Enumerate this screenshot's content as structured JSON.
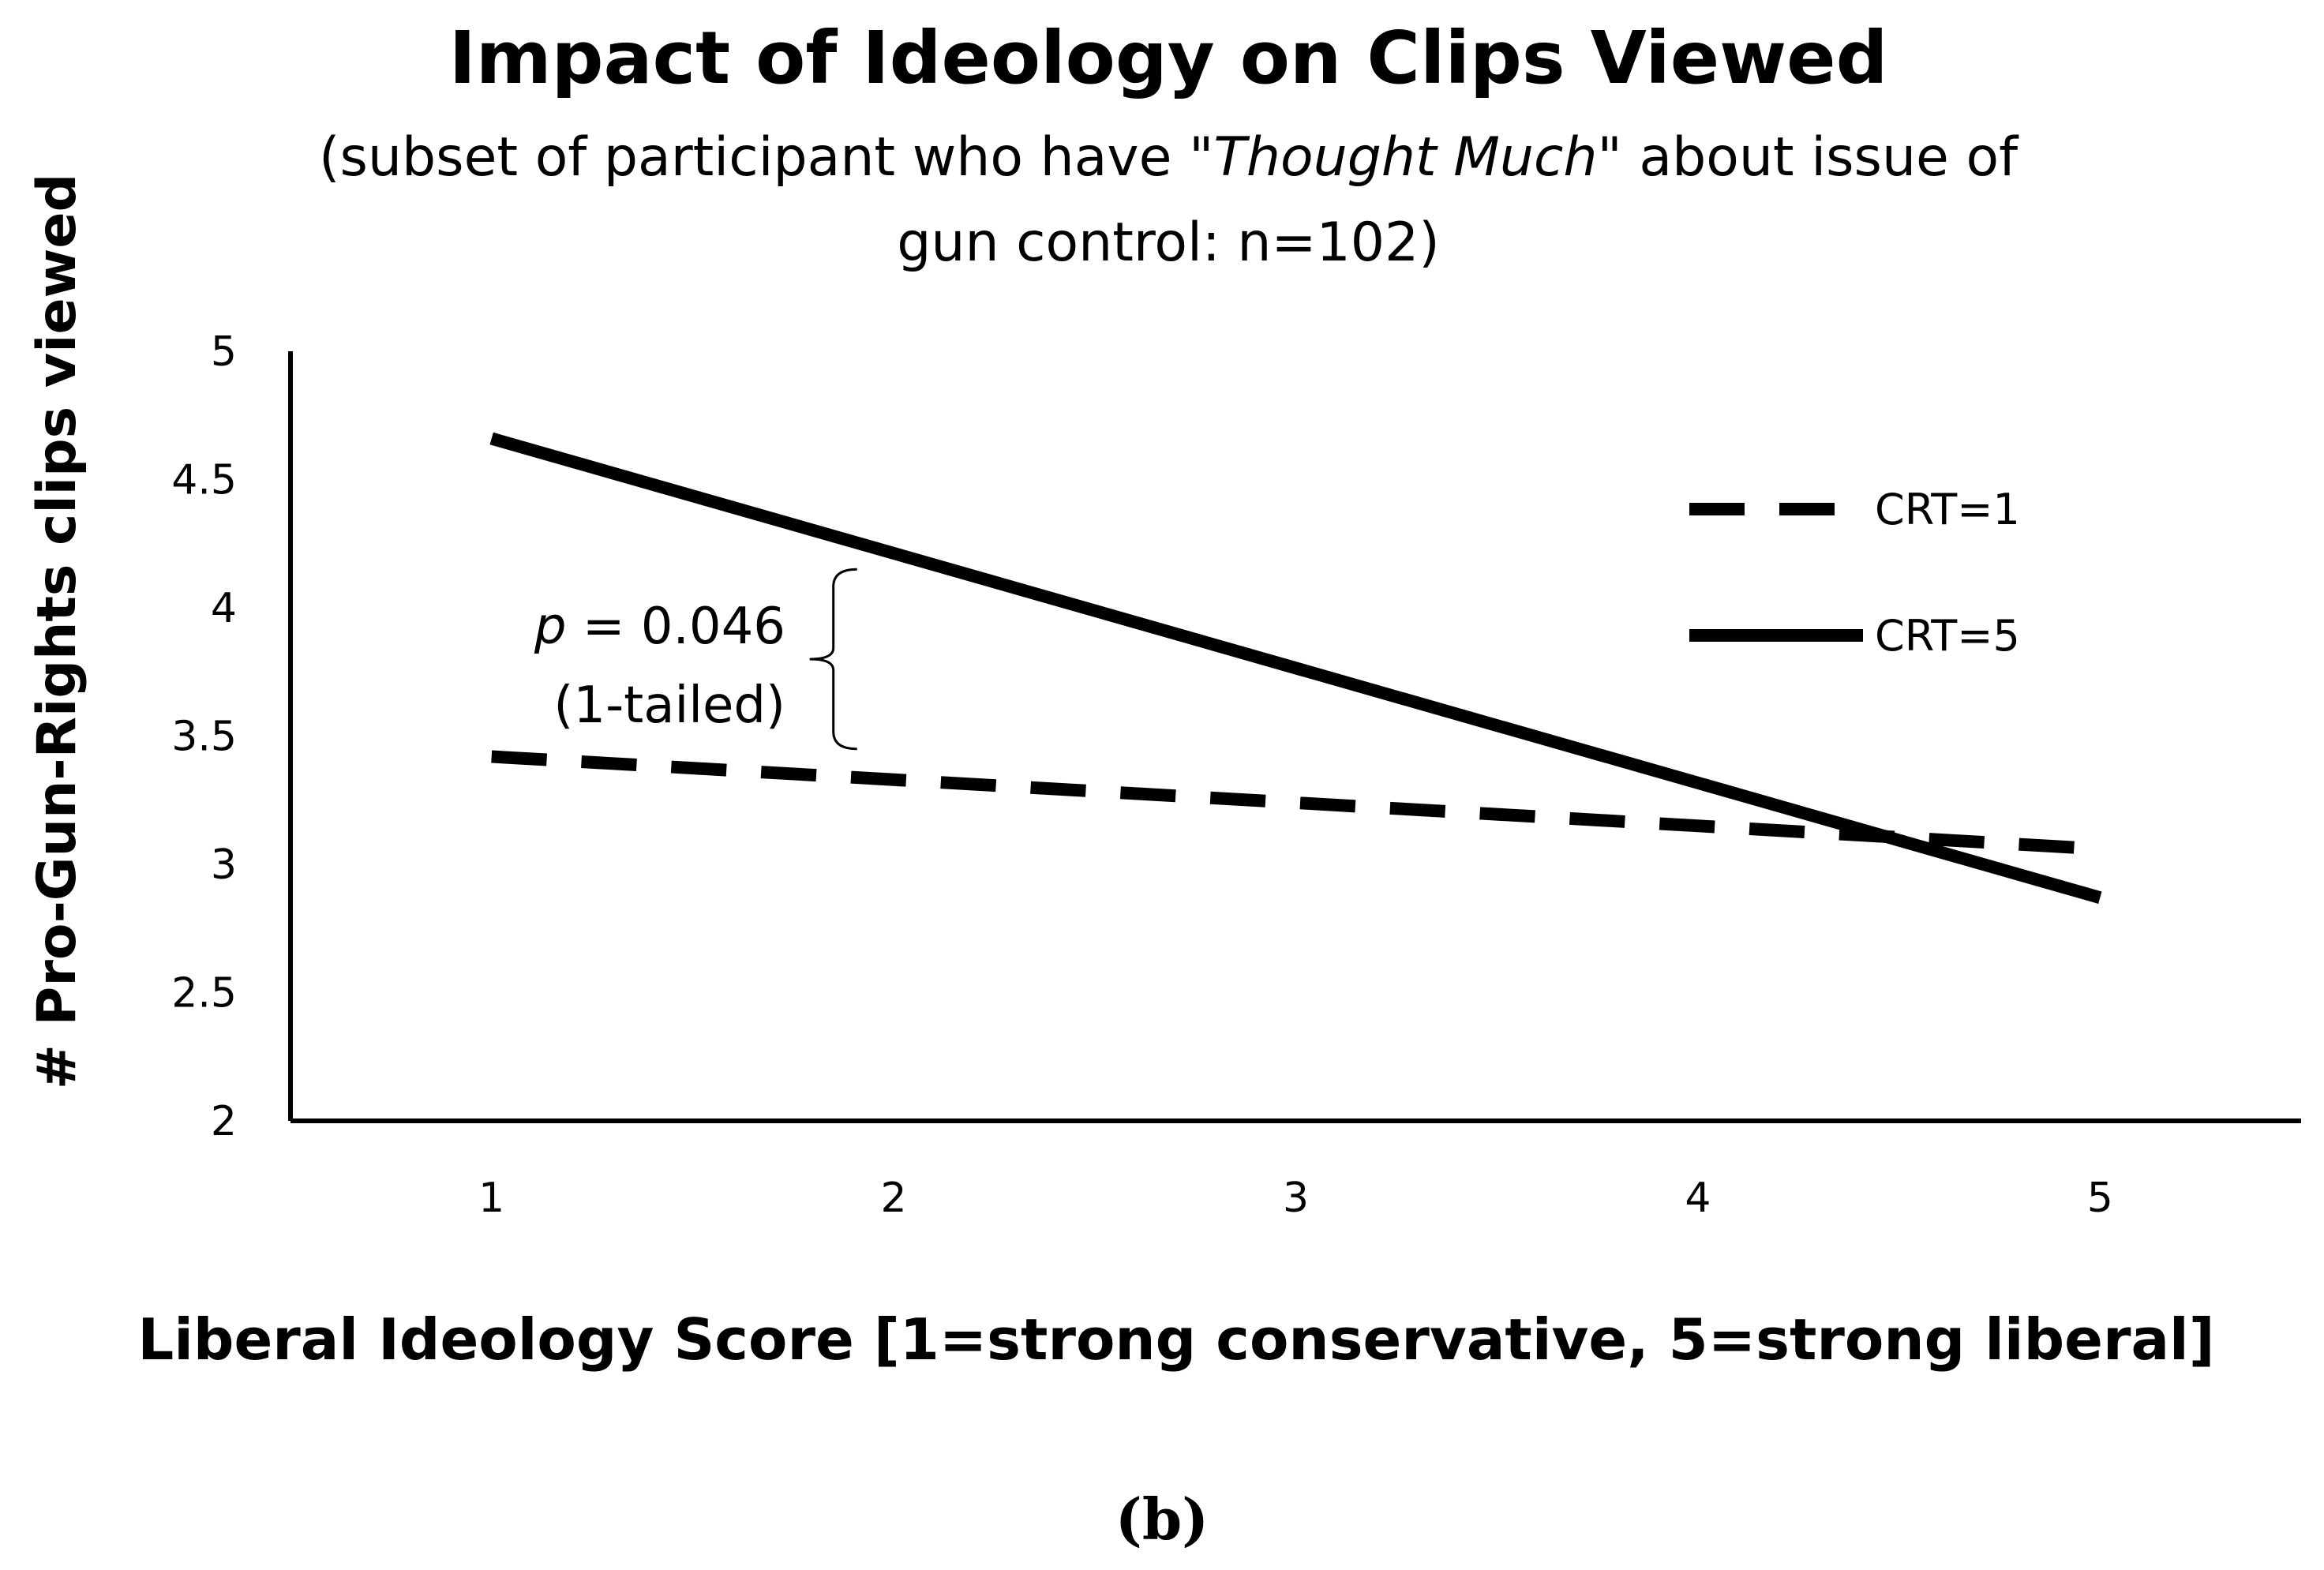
{
  "chart_data": {
    "type": "line",
    "title": "Impact of Ideology on Clips Viewed",
    "subtitle_line1_pre": "(subset of participant who have \"",
    "subtitle_line1_italic": "Thought Much",
    "subtitle_line1_post": "\" about issue of",
    "subtitle_line2": "gun control: n=102)",
    "xlabel": "Liberal Ideology Score [1=strong conservative, 5=strong liberal]",
    "ylabel": "# Pro-Gun-Rights clips viewed",
    "x": [
      1,
      2,
      3,
      4,
      5
    ],
    "x_tick_labels": [
      "1",
      "2",
      "3",
      "4",
      "5"
    ],
    "y_tick_labels": [
      "2",
      "2.5",
      "3",
      "3.5",
      "4",
      "4.5",
      "5"
    ],
    "y_ticks": [
      2,
      2.5,
      3,
      3.5,
      4,
      4.5,
      5
    ],
    "ylim": [
      2,
      5
    ],
    "xlim": [
      0.5,
      5.5
    ],
    "series": [
      {
        "name": "CRT=1",
        "style": "dashed",
        "start": [
          1,
          3.42
        ],
        "end": [
          5,
          3.06
        ]
      },
      {
        "name": "CRT=5",
        "style": "solid",
        "start": [
          1,
          4.66
        ],
        "end": [
          5,
          2.87
        ]
      }
    ],
    "legend_position": "top-right",
    "annotation": {
      "p_symbol": "p",
      "p_value_text": " = 0.046",
      "tail_text": "(1-tailed)",
      "bracket_x": 1.85,
      "bracket_y_top": 4.15,
      "bracket_y_bottom": 3.45
    },
    "colors": {
      "line": "#000000",
      "axis": "#000000",
      "text": "#000000"
    }
  },
  "panel_label": "(b)"
}
